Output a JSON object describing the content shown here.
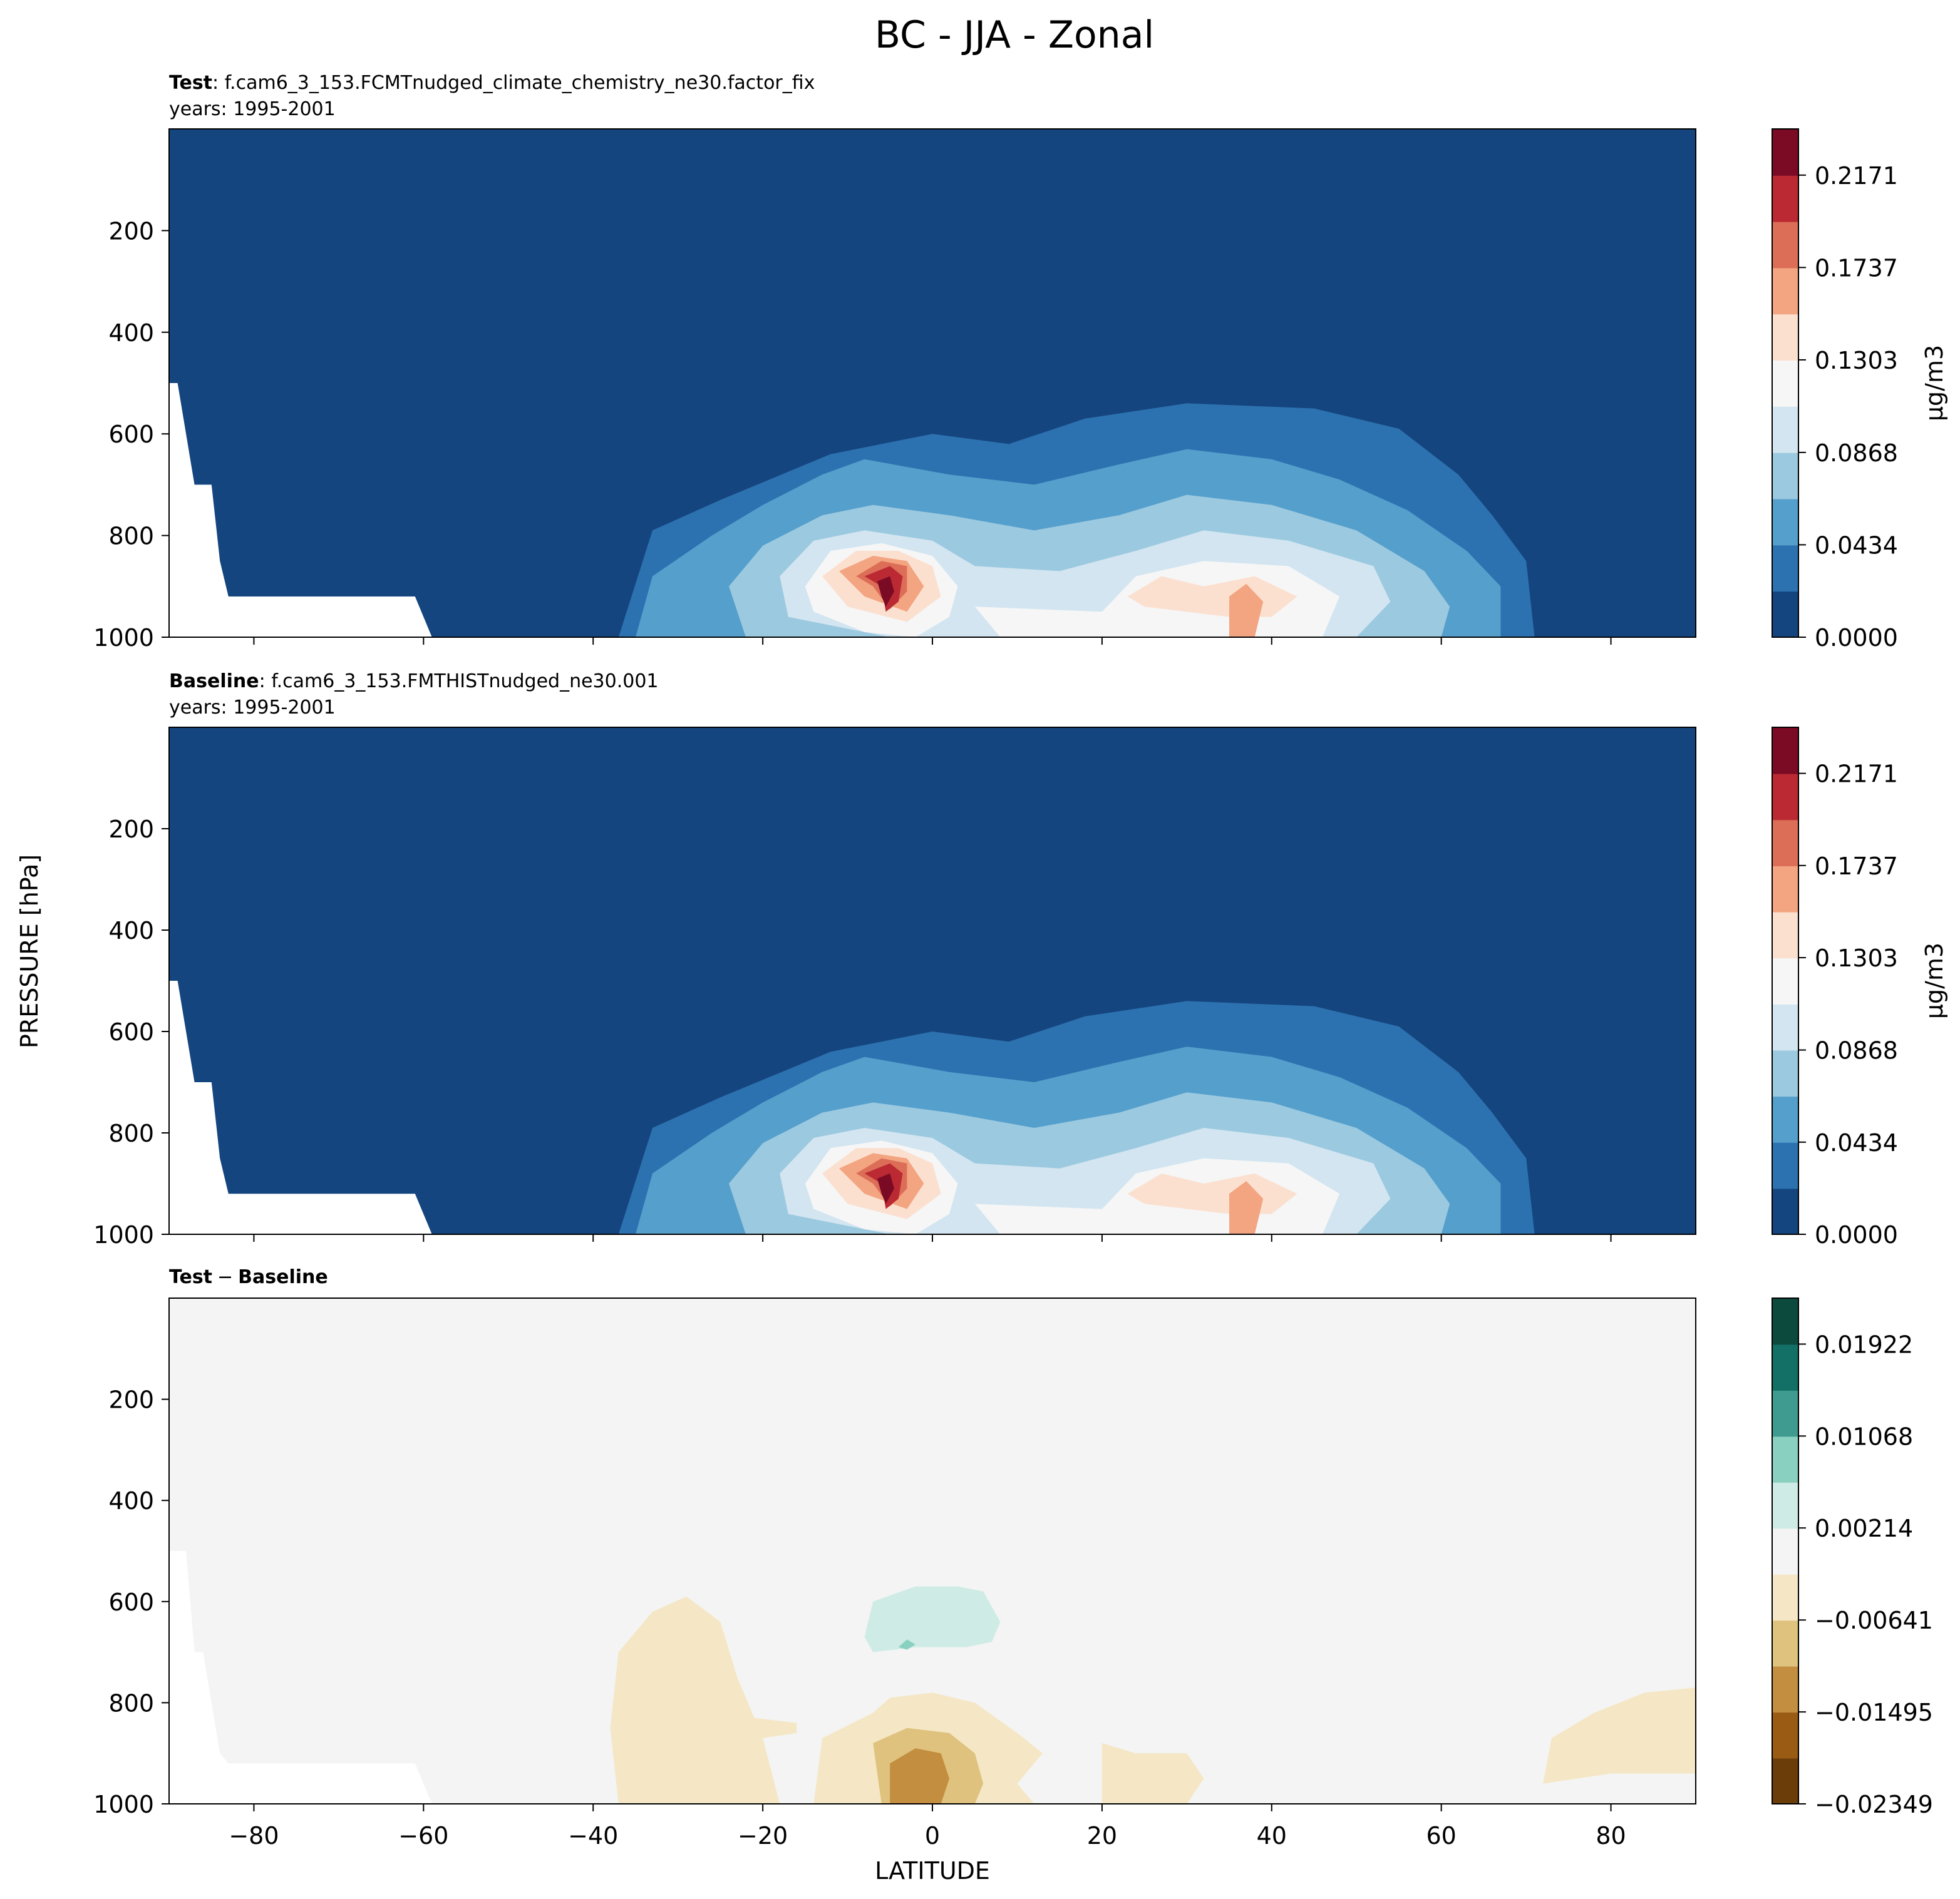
{
  "title": "BC - JJA - Zonal",
  "chart_data": [
    {
      "type": "contour",
      "title_parts": [
        "Test",
        ": f.cam6_3_153.FCMTnudged_climate_chemistry_ne30.factor_fix"
      ],
      "subtitle": "years: 1995-2001",
      "xlim": [
        -90,
        90
      ],
      "xticks": [
        -80,
        -60,
        -40,
        -20,
        0,
        20,
        40,
        60,
        80
      ],
      "ylim": [
        1000,
        0
      ],
      "yticks": [
        200,
        400,
        600,
        800,
        1000
      ],
      "clim": [
        0,
        0.2388
      ],
      "colorbar_label": "μg/m3",
      "cticks": [
        {
          "value": 0,
          "label": "0.0000"
        },
        {
          "value": 0.0434,
          "label": "0.0434"
        },
        {
          "value": 0.0868,
          "label": "0.0868"
        },
        {
          "value": 0.1303,
          "label": "0.1303"
        },
        {
          "value": 0.1737,
          "label": "0.1737"
        },
        {
          "value": 0.2171,
          "label": "0.2171"
        }
      ],
      "colors": [
        "#15457f",
        "#2c72b0",
        "#559fcc",
        "#9bc9e0",
        "#d2e5f0",
        "#f6f6f6",
        "#fbe0d0",
        "#f3a481",
        "#dc6e58",
        "#bb2a33",
        "#7b0b24"
      ]
    },
    {
      "type": "contour",
      "title_parts": [
        "Baseline",
        ": f.cam6_3_153.FMTHISTnudged_ne30.001"
      ],
      "subtitle": "years: 1995-2001",
      "ylabel": "PRESSURE [hPa]",
      "xlim": [
        -90,
        90
      ],
      "xticks": [
        -80,
        -60,
        -40,
        -20,
        0,
        20,
        40,
        60,
        80
      ],
      "ylim": [
        1000,
        0
      ],
      "yticks": [
        200,
        400,
        600,
        800,
        1000
      ],
      "clim": [
        0,
        0.2388
      ],
      "colorbar_label": "μg/m3",
      "cticks": [
        {
          "value": 0,
          "label": "0.0000"
        },
        {
          "value": 0.0434,
          "label": "0.0434"
        },
        {
          "value": 0.0868,
          "label": "0.0868"
        },
        {
          "value": 0.1303,
          "label": "0.1303"
        },
        {
          "value": 0.1737,
          "label": "0.1737"
        },
        {
          "value": 0.2171,
          "label": "0.2171"
        }
      ],
      "colors": [
        "#15457f",
        "#2c72b0",
        "#559fcc",
        "#9bc9e0",
        "#d2e5f0",
        "#f6f6f6",
        "#fbe0d0",
        "#f3a481",
        "#dc6e58",
        "#bb2a33",
        "#7b0b24"
      ]
    },
    {
      "type": "contour",
      "title_parts": [
        "Test",
        "−",
        "Baseline"
      ],
      "xlabel": "LATITUDE",
      "xlim": [
        -90,
        90
      ],
      "xticks": [
        {
          "value": -80,
          "label": "−80"
        },
        {
          "value": -60,
          "label": "−60"
        },
        {
          "value": -40,
          "label": "−40"
        },
        {
          "value": -20,
          "label": "−20"
        },
        0,
        20,
        40,
        60,
        80
      ],
      "ylim": [
        1000,
        0
      ],
      "yticks": [
        200,
        400,
        600,
        800,
        1000
      ],
      "clim": [
        -0.02349,
        0.02349
      ],
      "cticks": [
        {
          "value": -0.02349,
          "label": "−0.02349"
        },
        {
          "value": -0.01495,
          "label": "−0.01495"
        },
        {
          "value": -0.00641,
          "label": "−0.00641"
        },
        {
          "value": 0.00214,
          "label": "0.00214"
        },
        {
          "value": 0.01068,
          "label": "0.01068"
        },
        {
          "value": 0.01922,
          "label": "0.01922"
        }
      ],
      "colors": [
        "#6b3d08",
        "#9a5b14",
        "#c38e3f",
        "#dfc27d",
        "#f5e7c5",
        "#f3f4f3",
        "#cfebe5",
        "#8ad0c0",
        "#3f9b8f",
        "#137066",
        "#0c4a3e"
      ]
    }
  ]
}
